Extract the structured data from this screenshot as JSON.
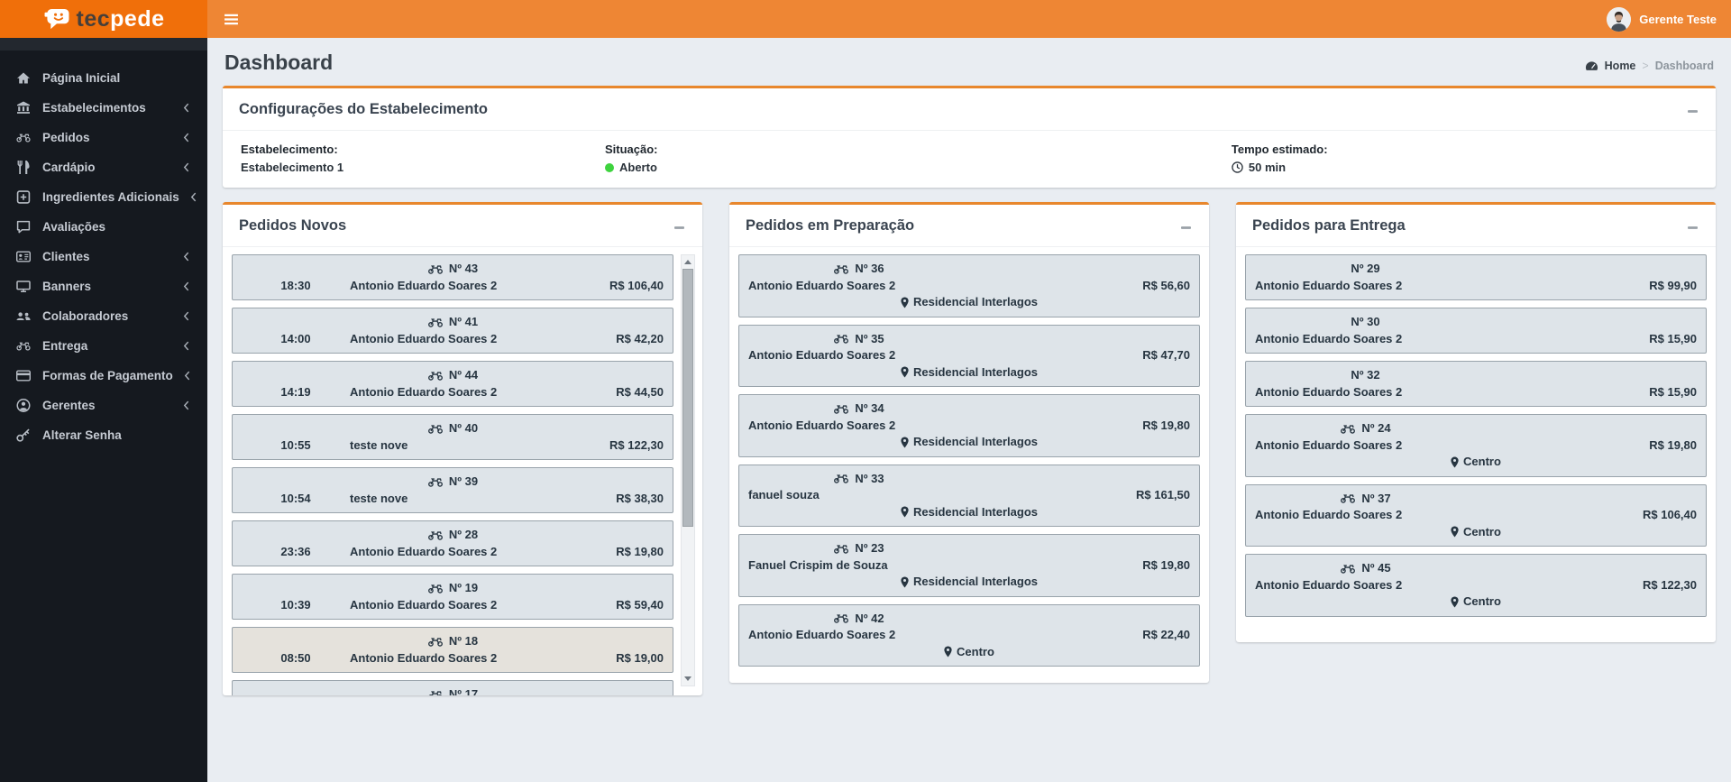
{
  "colors": {
    "brand_orange": "#f06f0a",
    "topbar_orange": "#ee8634",
    "accent_orange": "#e8872d",
    "sidebar_dark": "#15191f",
    "status_open_green": "#3ed33e",
    "card_bg": "#dee4e9",
    "card_bg_highlight": "#e5e2dc",
    "page_bg": "#e9edf2"
  },
  "topbar": {
    "logo": {
      "text_dark": "tec",
      "text_light": "pede",
      "icon": "chat-bubble-logo-icon"
    },
    "menu_toggle_icon": "hamburger-icon",
    "user": {
      "name": "Gerente Teste",
      "avatar_icon": "person-avatar-icon"
    }
  },
  "sidebar": {
    "items": [
      {
        "label": "Página Inicial",
        "icon": "home-icon",
        "has_submenu": false
      },
      {
        "label": "Estabelecimentos",
        "icon": "bank-icon",
        "has_submenu": true
      },
      {
        "label": "Pedidos",
        "icon": "motorcycle-icon",
        "has_submenu": true
      },
      {
        "label": "Cardápio",
        "icon": "utensils-icon",
        "has_submenu": true
      },
      {
        "label": "Ingredientes Adicionais",
        "icon": "plus-square-icon",
        "has_submenu": true
      },
      {
        "label": "Avaliações",
        "icon": "comment-icon",
        "has_submenu": false
      },
      {
        "label": "Clientes",
        "icon": "id-card-icon",
        "has_submenu": true
      },
      {
        "label": "Banners",
        "icon": "monitor-icon",
        "has_submenu": true
      },
      {
        "label": "Colaboradores",
        "icon": "users-icon",
        "has_submenu": true
      },
      {
        "label": "Entrega",
        "icon": "motorcycle-icon",
        "has_submenu": true
      },
      {
        "label": "Formas de Pagamento",
        "icon": "credit-card-icon",
        "has_submenu": true
      },
      {
        "label": "Gerentes",
        "icon": "user-circle-icon",
        "has_submenu": true
      },
      {
        "label": "Alterar Senha",
        "icon": "key-icon",
        "has_submenu": false
      }
    ]
  },
  "page": {
    "title": "Dashboard",
    "breadcrumb": {
      "icon": "dashboard-gauge-icon",
      "home": "Home",
      "separator": ">",
      "current": "Dashboard"
    }
  },
  "settings_panel": {
    "title": "Configurações do Estabelecimento",
    "collapse_icon": "minus-icon",
    "fields": [
      {
        "label": "Estabelecimento:",
        "value": "Estabelecimento 1",
        "icon": null
      },
      {
        "label": "Situação:",
        "value": "Aberto",
        "icon": "status-dot",
        "status_color": "#3ed33e"
      },
      {
        "label": "Tempo estimado:",
        "value": "50 min",
        "icon": "clock-icon"
      }
    ]
  },
  "columns": [
    {
      "title": "Pedidos Novos",
      "collapse_icon": "minus-icon",
      "has_scrollbar": true,
      "orders": [
        {
          "number_label": "Nº 43",
          "moto_icon": true,
          "time": "18:30",
          "name": "Antonio Eduardo Soares 2",
          "price": "R$ 106,40",
          "location": null,
          "highlighted": false,
          "partial": false
        },
        {
          "number_label": "Nº 41",
          "moto_icon": true,
          "time": "14:00",
          "name": "Antonio Eduardo Soares 2",
          "price": "R$ 42,20",
          "location": null,
          "highlighted": false,
          "partial": false
        },
        {
          "number_label": "Nº 44",
          "moto_icon": true,
          "time": "14:19",
          "name": "Antonio Eduardo Soares 2",
          "price": "R$ 44,50",
          "location": null,
          "highlighted": false,
          "partial": false
        },
        {
          "number_label": "Nº 40",
          "moto_icon": true,
          "time": "10:55",
          "name": "teste nove",
          "price": "R$ 122,30",
          "location": null,
          "highlighted": false,
          "partial": false
        },
        {
          "number_label": "Nº 39",
          "moto_icon": true,
          "time": "10:54",
          "name": "teste nove",
          "price": "R$ 38,30",
          "location": null,
          "highlighted": false,
          "partial": false
        },
        {
          "number_label": "Nº 28",
          "moto_icon": true,
          "time": "23:36",
          "name": "Antonio Eduardo Soares 2",
          "price": "R$ 19,80",
          "location": null,
          "highlighted": false,
          "partial": false
        },
        {
          "number_label": "Nº 19",
          "moto_icon": true,
          "time": "10:39",
          "name": "Antonio Eduardo Soares 2",
          "price": "R$ 59,40",
          "location": null,
          "highlighted": false,
          "partial": false
        },
        {
          "number_label": "Nº 18",
          "moto_icon": true,
          "time": "08:50",
          "name": "Antonio Eduardo Soares 2",
          "price": "R$ 19,00",
          "location": null,
          "highlighted": true,
          "partial": false
        },
        {
          "number_label": "Nº 17",
          "moto_icon": true,
          "time": "",
          "name": "",
          "price": "",
          "location": null,
          "highlighted": false,
          "partial": true
        }
      ]
    },
    {
      "title": "Pedidos em Preparação",
      "collapse_icon": "minus-icon",
      "has_scrollbar": false,
      "orders": [
        {
          "number_label": "Nº 36",
          "moto_icon": true,
          "time": null,
          "name": "Antonio Eduardo Soares 2",
          "price": "R$ 56,60",
          "location": "Residencial Interlagos",
          "highlighted": false,
          "partial": false
        },
        {
          "number_label": "Nº 35",
          "moto_icon": true,
          "time": null,
          "name": "Antonio Eduardo Soares 2",
          "price": "R$ 47,70",
          "location": "Residencial Interlagos",
          "highlighted": false,
          "partial": false
        },
        {
          "number_label": "Nº 34",
          "moto_icon": true,
          "time": null,
          "name": "Antonio Eduardo Soares 2",
          "price": "R$ 19,80",
          "location": "Residencial Interlagos",
          "highlighted": false,
          "partial": false
        },
        {
          "number_label": "Nº 33",
          "moto_icon": true,
          "time": null,
          "name": "fanuel souza",
          "price": "R$ 161,50",
          "location": "Residencial Interlagos",
          "highlighted": false,
          "partial": false
        },
        {
          "number_label": "Nº 23",
          "moto_icon": true,
          "time": null,
          "name": "Fanuel Crispim de Souza",
          "price": "R$ 19,80",
          "location": "Residencial Interlagos",
          "highlighted": false,
          "partial": false
        },
        {
          "number_label": "Nº 42",
          "moto_icon": true,
          "time": null,
          "name": "Antonio Eduardo Soares 2",
          "price": "R$ 22,40",
          "location": "Centro",
          "highlighted": false,
          "partial": false
        }
      ]
    },
    {
      "title": "Pedidos para Entrega",
      "collapse_icon": "minus-icon",
      "has_scrollbar": false,
      "orders": [
        {
          "number_label": "Nº 29",
          "moto_icon": false,
          "time": null,
          "name": "Antonio Eduardo Soares 2",
          "price": "R$ 99,90",
          "location": null,
          "highlighted": false,
          "partial": false
        },
        {
          "number_label": "Nº 30",
          "moto_icon": false,
          "time": null,
          "name": "Antonio Eduardo Soares 2",
          "price": "R$ 15,90",
          "location": null,
          "highlighted": false,
          "partial": false
        },
        {
          "number_label": "Nº 32",
          "moto_icon": false,
          "time": null,
          "name": "Antonio Eduardo Soares 2",
          "price": "R$ 15,90",
          "location": null,
          "highlighted": false,
          "partial": false
        },
        {
          "number_label": "Nº 24",
          "moto_icon": true,
          "time": null,
          "name": "Antonio Eduardo Soares 2",
          "price": "R$ 19,80",
          "location": "Centro",
          "highlighted": false,
          "partial": false
        },
        {
          "number_label": "Nº 37",
          "moto_icon": true,
          "time": null,
          "name": "Antonio Eduardo Soares 2",
          "price": "R$ 106,40",
          "location": "Centro",
          "highlighted": false,
          "partial": false
        },
        {
          "number_label": "Nº 45",
          "moto_icon": true,
          "time": null,
          "name": "Antonio Eduardo Soares 2",
          "price": "R$ 122,30",
          "location": "Centro",
          "highlighted": false,
          "partial": false
        }
      ]
    }
  ]
}
